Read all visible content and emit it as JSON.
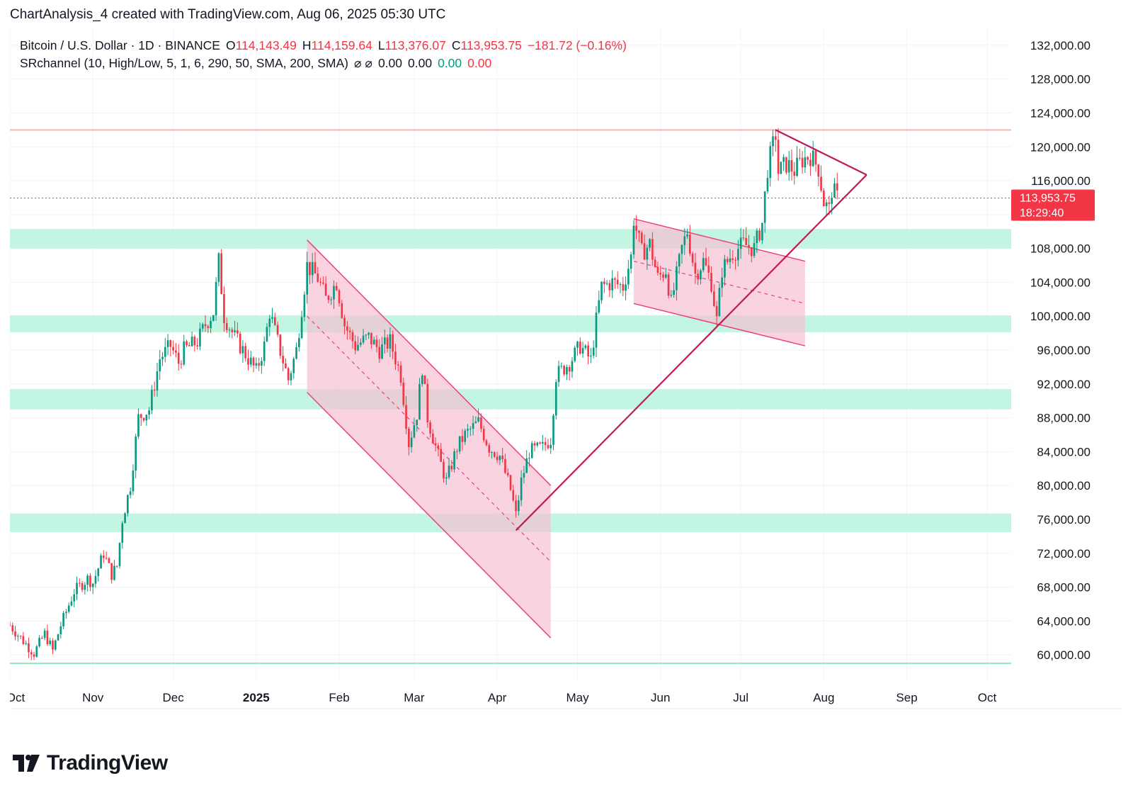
{
  "caption": "ChartAnalysis_4 created with TradingView.com, Aug 06, 2025 05:30 UTC",
  "legend": {
    "symbol": "Bitcoin / U.S. Dollar · 1D · BINANCE",
    "open_label": "O",
    "open_value": "114,143.49",
    "high_label": "H",
    "high_value": "114,159.64",
    "low_label": "L",
    "low_value": "113,376.07",
    "close_label": "C",
    "close_value": "113,953.75",
    "change": "−181.72 (−0.16%)",
    "indicator": "SRchannel (10, High/Low, 5, 1, 6, 290, 50, SMA, 200, SMA)",
    "ind_icons": "⌀  ⌀",
    "ind_v1": "0.00",
    "ind_v2": "0.00",
    "ind_v3": "0.00",
    "ind_v4": "0.00"
  },
  "price_tag": {
    "price": "113,953.75",
    "countdown": "18:29:40"
  },
  "brand": "TradingView",
  "colors": {
    "up": "#089981",
    "down": "#f23645",
    "zone": "#b9f5dd",
    "channel": "#f8bbd0",
    "trend": "#c2185b"
  },
  "chart_data": {
    "type": "candlestick",
    "symbol": "BTCUSD",
    "interval": "1D",
    "y_axis": {
      "min": 57000,
      "max": 134000,
      "ticks": [
        60000,
        64000,
        68000,
        72000,
        76000,
        80000,
        84000,
        88000,
        92000,
        96000,
        100000,
        104000,
        108000,
        112000,
        116000,
        120000,
        124000,
        128000,
        132000
      ],
      "tick_labels": [
        "60,000.00",
        "64,000.00",
        "68,000.00",
        "72,000.00",
        "76,000.00",
        "80,000.00",
        "84,000.00",
        "88,000.00",
        "92,000.00",
        "96,000.00",
        "100,000.00",
        "104,000.00",
        "108,000.00",
        "112,000.00",
        "116,000.00",
        "120,000.00",
        "124,000.00",
        "128,000.00",
        "132,000.00"
      ]
    },
    "x_axis": {
      "start": "2024-10-01",
      "end": "2025-10-10",
      "ticks": [
        {
          "date": "2024-10-01",
          "label": "Oct",
          "bold": false
        },
        {
          "date": "2024-11-01",
          "label": "Nov",
          "bold": false
        },
        {
          "date": "2024-12-01",
          "label": "Dec",
          "bold": false
        },
        {
          "date": "2025-01-01",
          "label": "2025",
          "bold": true
        },
        {
          "date": "2025-02-01",
          "label": "Feb",
          "bold": false
        },
        {
          "date": "2025-03-01",
          "label": "Mar",
          "bold": false
        },
        {
          "date": "2025-04-01",
          "label": "Apr",
          "bold": false
        },
        {
          "date": "2025-05-01",
          "label": "May",
          "bold": false
        },
        {
          "date": "2025-06-01",
          "label": "Jun",
          "bold": false
        },
        {
          "date": "2025-07-01",
          "label": "Jul",
          "bold": false
        },
        {
          "date": "2025-08-01",
          "label": "Aug",
          "bold": false
        },
        {
          "date": "2025-09-01",
          "label": "Sep",
          "bold": false
        },
        {
          "date": "2025-10-01",
          "label": "Oct",
          "bold": false
        }
      ]
    },
    "price_path": [
      [
        "2024-10-01",
        63500
      ],
      [
        "2024-10-05",
        62000
      ],
      [
        "2024-10-10",
        60200
      ],
      [
        "2024-10-14",
        62500
      ],
      [
        "2024-10-17",
        60500
      ],
      [
        "2024-10-20",
        63500
      ],
      [
        "2024-10-25",
        67500
      ],
      [
        "2024-10-30",
        69000
      ],
      [
        "2024-11-01",
        68500
      ],
      [
        "2024-11-05",
        72000
      ],
      [
        "2024-11-08",
        69500
      ],
      [
        "2024-11-10",
        70500
      ],
      [
        "2024-11-12",
        76000
      ],
      [
        "2024-11-15",
        80000
      ],
      [
        "2024-11-18",
        88000
      ],
      [
        "2024-11-22",
        89000
      ],
      [
        "2024-11-26",
        95000
      ],
      [
        "2024-11-30",
        96500
      ],
      [
        "2024-12-03",
        94500
      ],
      [
        "2024-12-05",
        96000
      ],
      [
        "2024-12-10",
        97000
      ],
      [
        "2024-12-13",
        99000
      ],
      [
        "2024-12-16",
        100500
      ],
      [
        "2024-12-18",
        106500
      ],
      [
        "2024-12-20",
        100000
      ],
      [
        "2024-12-24",
        97500
      ],
      [
        "2024-12-29",
        95000
      ],
      [
        "2025-01-01",
        93500
      ],
      [
        "2025-01-04",
        96500
      ],
      [
        "2025-01-06",
        100500
      ],
      [
        "2025-01-09",
        97000
      ],
      [
        "2025-01-13",
        92500
      ],
      [
        "2025-01-16",
        96000
      ],
      [
        "2025-01-18",
        101000
      ],
      [
        "2025-01-20",
        106000
      ],
      [
        "2025-01-24",
        104500
      ],
      [
        "2025-01-27",
        102000
      ],
      [
        "2025-01-31",
        104000
      ],
      [
        "2025-02-03",
        99000
      ],
      [
        "2025-02-07",
        96500
      ],
      [
        "2025-02-12",
        97500
      ],
      [
        "2025-02-16",
        96000
      ],
      [
        "2025-02-20",
        97000
      ],
      [
        "2025-02-24",
        93000
      ],
      [
        "2025-02-27",
        85000
      ],
      [
        "2025-03-02",
        88500
      ],
      [
        "2025-03-04",
        94000
      ],
      [
        "2025-03-06",
        88000
      ],
      [
        "2025-03-10",
        83500
      ],
      [
        "2025-03-13",
        80500
      ],
      [
        "2025-03-17",
        84500
      ],
      [
        "2025-03-20",
        86000
      ],
      [
        "2025-03-25",
        87500
      ],
      [
        "2025-03-29",
        84500
      ],
      [
        "2025-04-02",
        83500
      ],
      [
        "2025-04-06",
        79500
      ],
      [
        "2025-04-08",
        76500
      ],
      [
        "2025-04-10",
        80500
      ],
      [
        "2025-04-13",
        84000
      ],
      [
        "2025-04-18",
        84500
      ],
      [
        "2025-04-21",
        85500
      ],
      [
        "2025-04-23",
        93000
      ],
      [
        "2025-04-28",
        94500
      ],
      [
        "2025-05-02",
        96500
      ],
      [
        "2025-05-06",
        94800
      ],
      [
        "2025-05-08",
        99500
      ],
      [
        "2025-05-10",
        103500
      ],
      [
        "2025-05-14",
        104000
      ],
      [
        "2025-05-18",
        103500
      ],
      [
        "2025-05-21",
        107000
      ],
      [
        "2025-05-22",
        111500
      ],
      [
        "2025-05-25",
        107500
      ],
      [
        "2025-05-28",
        108500
      ],
      [
        "2025-05-31",
        104500
      ],
      [
        "2025-06-03",
        105500
      ],
      [
        "2025-06-05",
        101500
      ],
      [
        "2025-06-09",
        108000
      ],
      [
        "2025-06-11",
        110000
      ],
      [
        "2025-06-14",
        105000
      ],
      [
        "2025-06-17",
        106500
      ],
      [
        "2025-06-20",
        104000
      ],
      [
        "2025-06-22",
        99500
      ],
      [
        "2025-06-24",
        105500
      ],
      [
        "2025-06-28",
        107500
      ],
      [
        "2025-07-02",
        108500
      ],
      [
        "2025-07-06",
        108000
      ],
      [
        "2025-07-09",
        111000
      ],
      [
        "2025-07-11",
        117500
      ],
      [
        "2025-07-14",
        121500
      ],
      [
        "2025-07-15",
        117000
      ],
      [
        "2025-07-18",
        118000
      ],
      [
        "2025-07-21",
        117200
      ],
      [
        "2025-07-24",
        118500
      ],
      [
        "2025-07-27",
        119000
      ],
      [
        "2025-07-30",
        117500
      ],
      [
        "2025-08-01",
        113500
      ],
      [
        "2025-08-03",
        112500
      ],
      [
        "2025-08-04",
        115000
      ],
      [
        "2025-08-06",
        113953.75
      ]
    ],
    "horizontal_lines": [
      {
        "name": "resistance",
        "price": 122000,
        "color": "#f7b5b8"
      },
      {
        "name": "last-price",
        "price": 113953.75,
        "color": "#f23645",
        "style": "dotted"
      },
      {
        "name": "support-base",
        "price": 59000,
        "color": "#8ce8c2"
      }
    ],
    "sr_zones": [
      {
        "low": 108000,
        "high": 110300
      },
      {
        "low": 98100,
        "high": 100100
      },
      {
        "low": 89000,
        "high": 91400
      },
      {
        "low": 74500,
        "high": 76700
      }
    ],
    "channels": [
      {
        "name": "descending-channel",
        "upper": [
          [
            "2025-01-20",
            109000
          ],
          [
            "2025-04-21",
            80000
          ]
        ],
        "lower": [
          [
            "2025-01-20",
            91000
          ],
          [
            "2025-04-21",
            62000
          ]
        ],
        "mid": [
          [
            "2025-01-20",
            100000
          ],
          [
            "2025-04-21",
            71000
          ]
        ]
      },
      {
        "name": "bull-flag",
        "upper": [
          [
            "2025-05-22",
            111500
          ],
          [
            "2025-07-25",
            106500
          ]
        ],
        "lower": [
          [
            "2025-05-22",
            101500
          ],
          [
            "2025-07-25",
            96500
          ]
        ],
        "mid": [
          [
            "2025-05-22",
            106500
          ],
          [
            "2025-07-25",
            101500
          ]
        ]
      }
    ],
    "trendlines": [
      {
        "name": "rising-trendline",
        "points": [
          [
            "2025-04-08",
            74700
          ],
          [
            "2025-08-17",
            116700
          ]
        ]
      },
      {
        "name": "descending-trendline",
        "points": [
          [
            "2025-07-14",
            122000
          ],
          [
            "2025-08-17",
            116700
          ]
        ]
      }
    ]
  }
}
